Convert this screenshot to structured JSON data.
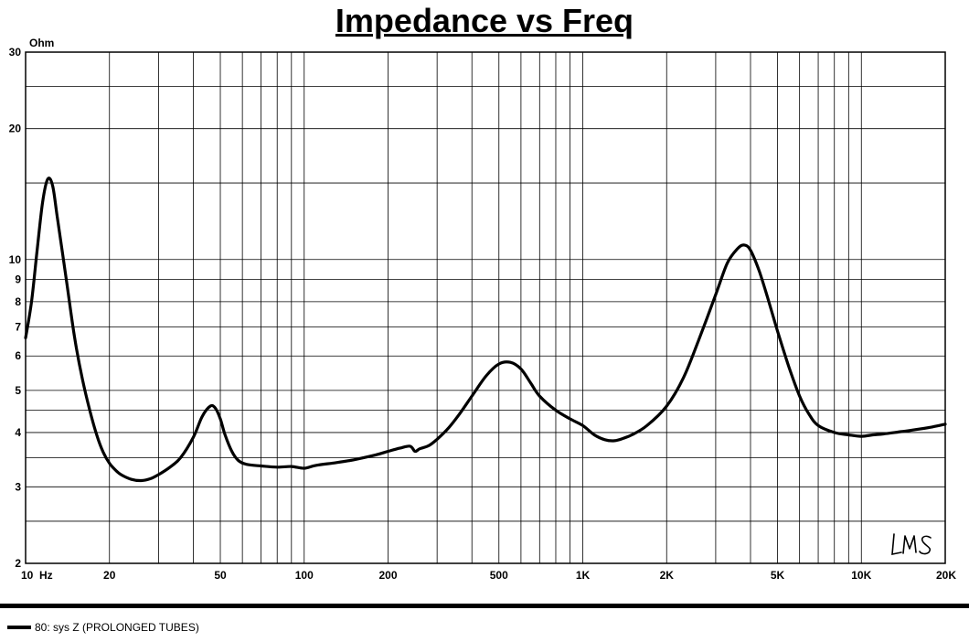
{
  "chart_data": {
    "type": "line",
    "title": "Impedance vs Freq",
    "ylabel": "Ohm",
    "x_scale": "log",
    "y_scale": "log",
    "xlim": [
      10,
      20000
    ],
    "ylim": [
      2,
      30
    ],
    "grid": true,
    "x_ticks": [
      {
        "value": 10,
        "label": "10  Hz"
      },
      {
        "value": 20,
        "label": "20"
      },
      {
        "value": 50,
        "label": "50"
      },
      {
        "value": 100,
        "label": "100"
      },
      {
        "value": 200,
        "label": "200"
      },
      {
        "value": 500,
        "label": "500"
      },
      {
        "value": 1000,
        "label": "1K"
      },
      {
        "value": 2000,
        "label": "2K"
      },
      {
        "value": 5000,
        "label": "5K"
      },
      {
        "value": 10000,
        "label": "10K"
      },
      {
        "value": 20000,
        "label": "20K"
      }
    ],
    "y_ticks": [
      {
        "value": 2,
        "label": "2"
      },
      {
        "value": 3,
        "label": "3"
      },
      {
        "value": 4,
        "label": "4"
      },
      {
        "value": 5,
        "label": "5"
      },
      {
        "value": 6,
        "label": "6"
      },
      {
        "value": 7,
        "label": "7"
      },
      {
        "value": 8,
        "label": "8"
      },
      {
        "value": 9,
        "label": "9"
      },
      {
        "value": 10,
        "label": "10"
      },
      {
        "value": 20,
        "label": "20"
      },
      {
        "value": 30,
        "label": "30"
      }
    ],
    "series": [
      {
        "name": "80: sys Z (PROLONGED TUBES)",
        "color": "#000000",
        "x": [
          10,
          10.5,
          11,
          11.5,
          12,
          12.5,
          13,
          14,
          15,
          16,
          17,
          18,
          19,
          20,
          21,
          22,
          24,
          26,
          28,
          30,
          33,
          36,
          40,
          43,
          46,
          48,
          50,
          52,
          55,
          58,
          62,
          70,
          80,
          90,
          100,
          110,
          130,
          150,
          180,
          200,
          220,
          240,
          250,
          260,
          280,
          300,
          330,
          360,
          400,
          450,
          500,
          550,
          600,
          650,
          700,
          800,
          900,
          1000,
          1100,
          1200,
          1300,
          1400,
          1500,
          1700,
          2000,
          2300,
          2600,
          3000,
          3300,
          3600,
          3800,
          4000,
          4300,
          4600,
          5000,
          5500,
          6000,
          6500,
          7000,
          8000,
          9000,
          10000,
          11000,
          12000,
          14000,
          16000,
          18000,
          20000
        ],
        "y": [
          6.6,
          8.0,
          10.5,
          13.5,
          15.3,
          14.8,
          12.5,
          9.0,
          6.6,
          5.3,
          4.5,
          3.95,
          3.6,
          3.4,
          3.28,
          3.2,
          3.12,
          3.1,
          3.13,
          3.2,
          3.33,
          3.5,
          3.9,
          4.35,
          4.6,
          4.55,
          4.3,
          3.95,
          3.62,
          3.45,
          3.38,
          3.35,
          3.33,
          3.34,
          3.31,
          3.36,
          3.41,
          3.46,
          3.55,
          3.62,
          3.68,
          3.72,
          3.62,
          3.67,
          3.73,
          3.86,
          4.1,
          4.4,
          4.85,
          5.4,
          5.75,
          5.8,
          5.6,
          5.2,
          4.85,
          4.5,
          4.3,
          4.15,
          3.95,
          3.85,
          3.83,
          3.88,
          3.95,
          4.15,
          4.6,
          5.35,
          6.5,
          8.3,
          9.8,
          10.6,
          10.8,
          10.5,
          9.4,
          8.2,
          6.85,
          5.65,
          4.85,
          4.4,
          4.15,
          4.0,
          3.95,
          3.92,
          3.95,
          3.97,
          4.02,
          4.07,
          4.12,
          4.18
        ]
      }
    ],
    "legend": [
      {
        "label": "80: sys Z (PROLONGED TUBES)"
      }
    ],
    "legend_position": "bottom-left"
  },
  "watermark_text": "LMS"
}
